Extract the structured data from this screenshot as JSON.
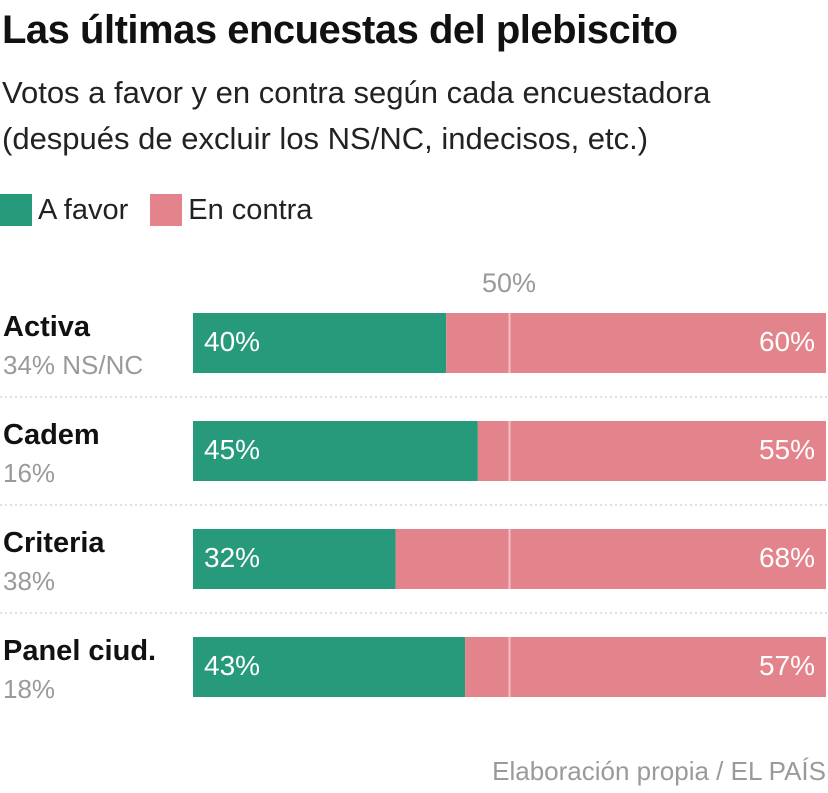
{
  "chart_data": {
    "type": "bar",
    "stacked": true,
    "orientation": "horizontal",
    "title": "Las últimas encuestas del plebiscito",
    "subtitle_lines": [
      "Votos a favor y en contra según cada encuestadora",
      "(después de excluir los NS/NC, indecisos, etc.)"
    ],
    "reference_line": {
      "value": 50,
      "label": "50%"
    },
    "xlim": [
      0,
      100
    ],
    "legend_position": "top-left",
    "series": [
      {
        "name": "A favor",
        "color": "#269a7a",
        "values": [
          40,
          45,
          32,
          43
        ]
      },
      {
        "name": "En contra",
        "color": "#e3838b",
        "values": [
          60,
          55,
          68,
          57
        ]
      }
    ],
    "categories": [
      "Activa",
      "Cadem",
      "Criteria",
      "Panel ciud."
    ],
    "undecided_labels": [
      "34% NS/NC",
      "16%",
      "38%",
      "18%"
    ],
    "value_labels": {
      "a_favor": [
        "40%",
        "45%",
        "32%",
        "43%"
      ],
      "en_contra": [
        "60%",
        "55%",
        "68%",
        "57%"
      ]
    },
    "source": "Elaboración propia / EL PAÍS"
  },
  "colors": {
    "favor": "#269a7a",
    "contra": "#e3838b",
    "reference_line": "#f2c2c6",
    "separator": "#cfcfcf",
    "muted_text": "#9a9a9a"
  }
}
